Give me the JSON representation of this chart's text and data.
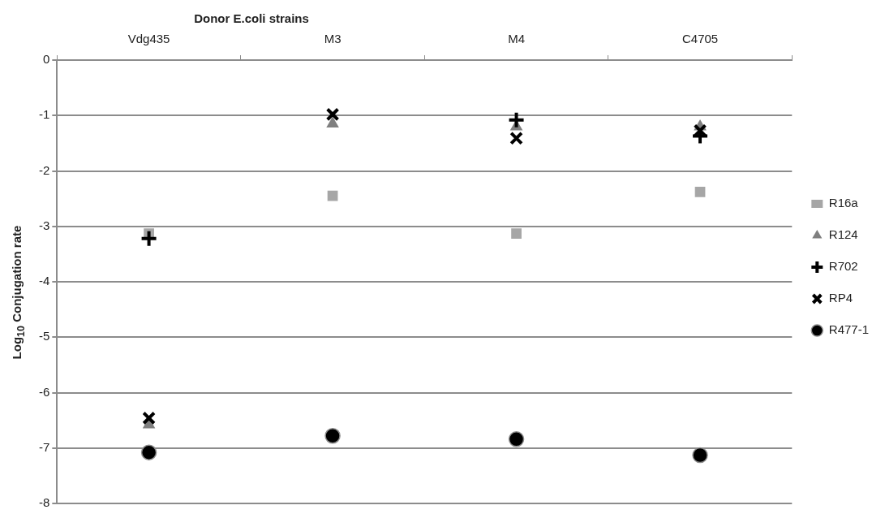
{
  "chart_data": {
    "type": "scatter",
    "title": "Donor E.coli strains",
    "ylabel": "Log$_{10}$ Conjugation rate",
    "categories": [
      "Vdg435",
      "M3",
      "M4",
      "C4705"
    ],
    "series": [
      {
        "name": "R16a",
        "color": "#a6a6a6",
        "marker": "square",
        "values": [
          -3.13,
          -2.45,
          -3.13,
          -2.38
        ]
      },
      {
        "name": "R124",
        "color": "#7f7f7f",
        "marker": "triangle",
        "values": [
          -6.58,
          -1.15,
          -1.2,
          -1.2
        ]
      },
      {
        "name": "R702",
        "color": "#000000",
        "marker": "cross",
        "values": [
          -3.22,
          null,
          -1.08,
          -1.37
        ]
      },
      {
        "name": "RP4",
        "color": "#000000",
        "marker": "x",
        "values": [
          -6.46,
          -0.98,
          -1.41,
          -1.27
        ]
      },
      {
        "name": "R477-1",
        "color": "#000000",
        "marker": "circle",
        "values": [
          -7.08,
          -6.78,
          -6.84,
          -7.13
        ]
      }
    ],
    "ylim": [
      -8,
      0
    ],
    "yticks": [
      0,
      -1,
      -2,
      -3,
      -4,
      -5,
      -6,
      -7,
      -8
    ],
    "grid": "y",
    "legend": "right"
  }
}
